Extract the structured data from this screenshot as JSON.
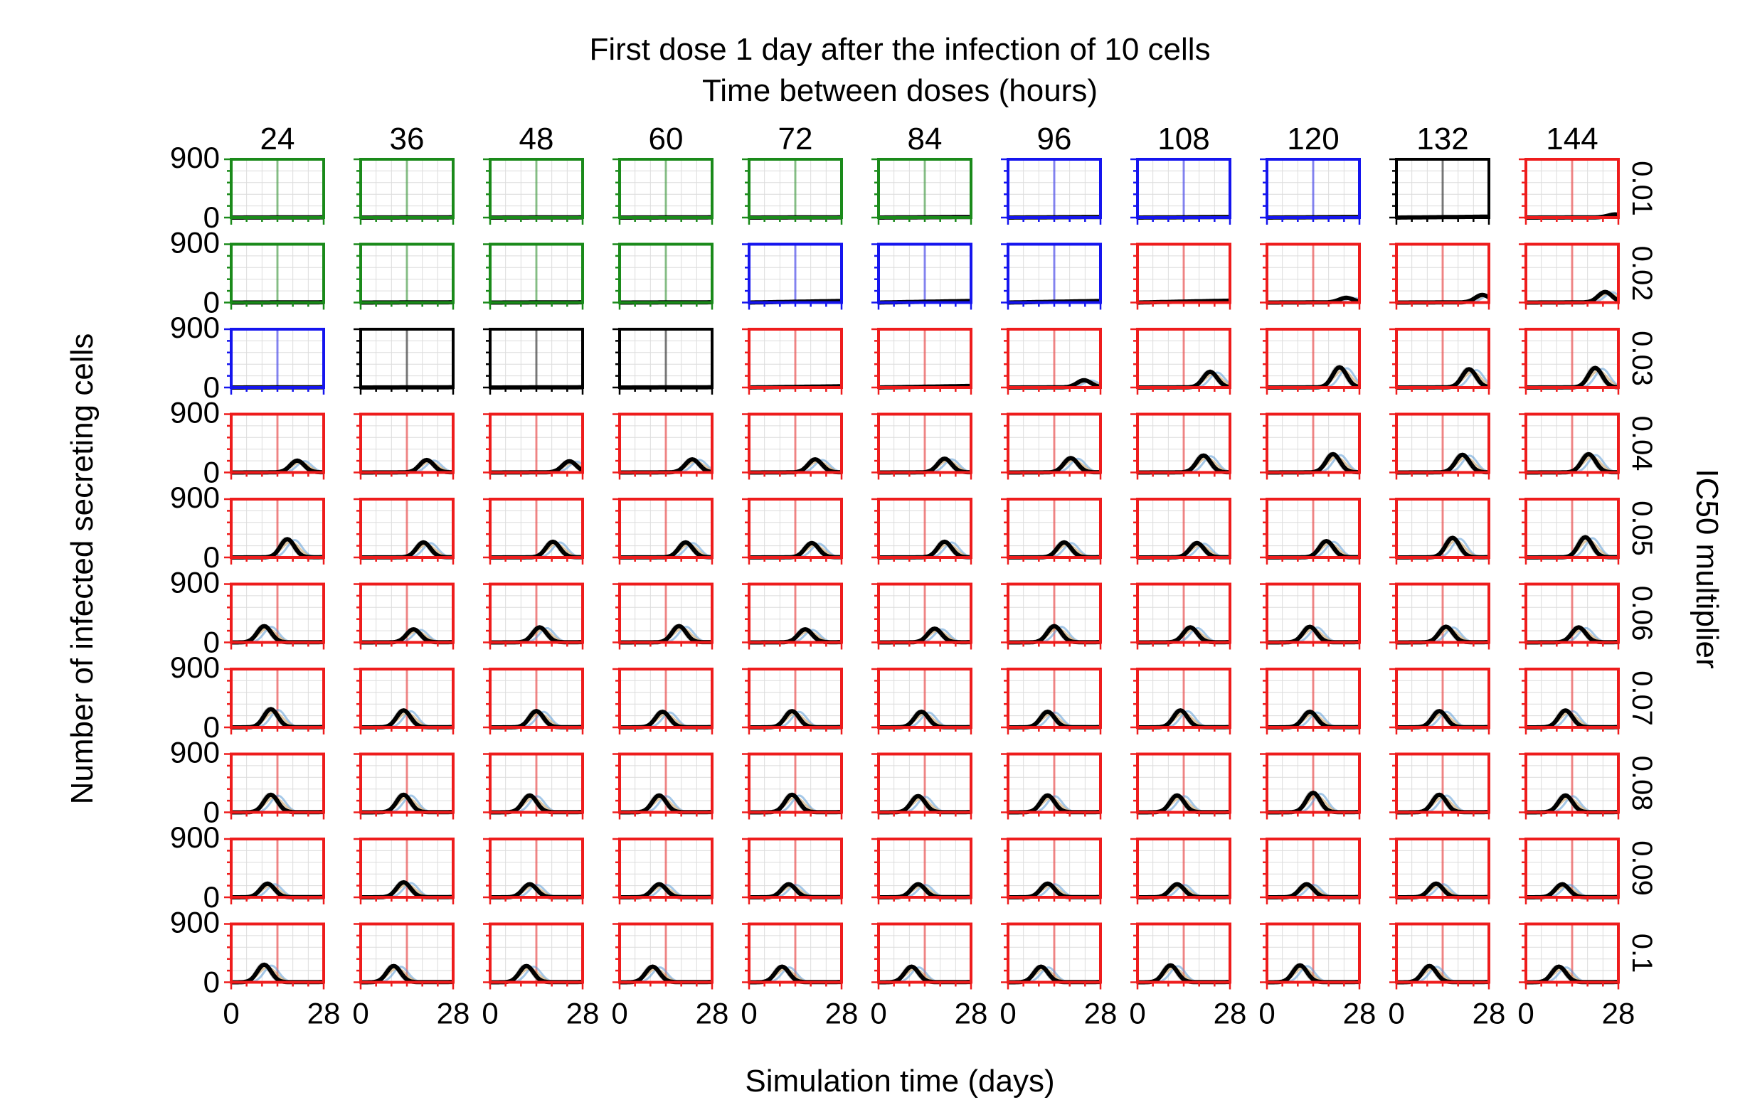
{
  "chart_data": {
    "type": "line",
    "title": "First dose 1 day after the infection of 10 cells",
    "subtitle": "Time between doses (hours)",
    "xlabel": "Simulation time (days)",
    "ylabel": "Number of infected secreting cells",
    "row_label": "IC50 multiplier",
    "columns": [
      "24",
      "36",
      "48",
      "60",
      "72",
      "84",
      "96",
      "108",
      "120",
      "132",
      "144"
    ],
    "rows": [
      "0.01",
      "0.02",
      "0.03",
      "0.04",
      "0.05",
      "0.06",
      "0.07",
      "0.08",
      "0.09",
      "0.1"
    ],
    "xlim": [
      0,
      28
    ],
    "ylim": [
      0,
      900
    ],
    "x_tick_labels": [
      "0",
      "28"
    ],
    "y_tick_labels": [
      "0",
      "900"
    ],
    "dose_marker_day": 14,
    "grid": true,
    "status_colors": {
      "G": "#1a8a1a",
      "B": "#1515ee",
      "K": "#000000",
      "R": "#ee1c1c"
    },
    "status_grid": [
      "GGGGGGBBBKR",
      "GGGGBBBRRRR",
      "BKKKRRRRRRR",
      "RRRRRRRRRRR",
      "RRRRRRRRRRR",
      "RRRRRRRRRRR",
      "RRRRRRRRRRR",
      "RRRRRRRRRRR",
      "RRRRRRRRRRR",
      "RRRRRRRRRRR"
    ],
    "mean_curve_peak": [
      [
        0,
        0,
        0,
        0,
        0,
        5,
        5,
        5,
        5,
        10,
        45
      ],
      [
        0,
        0,
        0,
        0,
        20,
        20,
        20,
        25,
        70,
        115,
        160
      ],
      [
        0,
        0,
        0,
        0,
        15,
        20,
        110,
        240,
        310,
        280,
        300
      ],
      [
        180,
        190,
        170,
        200,
        200,
        210,
        220,
        260,
        280,
        270,
        280
      ],
      [
        280,
        230,
        240,
        230,
        220,
        240,
        230,
        220,
        250,
        300,
        310
      ],
      [
        250,
        200,
        230,
        250,
        200,
        210,
        250,
        230,
        240,
        240,
        230
      ],
      [
        280,
        260,
        250,
        240,
        250,
        240,
        240,
        260,
        240,
        250,
        260
      ],
      [
        270,
        270,
        260,
        260,
        270,
        250,
        260,
        260,
        300,
        270,
        260
      ],
      [
        210,
        230,
        200,
        200,
        200,
        200,
        210,
        200,
        200,
        210,
        200
      ],
      [
        270,
        250,
        250,
        240,
        240,
        240,
        240,
        260,
        260,
        250,
        240
      ]
    ],
    "mean_curve_peak_day": [
      [
        14,
        14,
        14,
        14,
        14,
        14,
        14,
        14,
        14,
        14,
        27
      ],
      [
        14,
        14,
        14,
        14,
        14,
        14,
        14,
        14,
        24,
        26,
        24
      ],
      [
        14,
        14,
        14,
        14,
        18,
        18,
        23,
        22,
        22,
        22,
        21
      ],
      [
        20,
        20,
        24,
        22,
        20,
        20,
        19,
        20,
        20,
        20,
        19
      ],
      [
        17,
        19,
        19,
        20,
        19,
        20,
        17,
        18,
        18,
        17,
        18
      ],
      [
        10,
        16,
        15,
        18,
        17,
        17,
        14,
        16,
        13,
        15,
        16
      ],
      [
        12,
        13,
        14,
        13,
        13,
        13,
        12,
        13,
        13,
        13,
        12
      ],
      [
        12,
        13,
        12,
        12,
        13,
        12,
        12,
        12,
        14,
        13,
        12
      ],
      [
        11,
        13,
        12,
        12,
        12,
        12,
        12,
        12,
        12,
        12,
        11
      ],
      [
        10,
        10,
        11,
        10,
        10,
        10,
        10,
        10,
        10,
        10,
        10
      ]
    ]
  }
}
